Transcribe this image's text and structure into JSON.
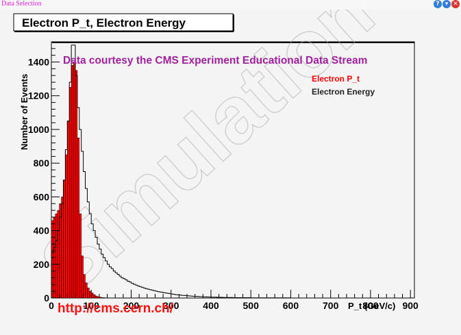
{
  "window": {
    "title": "Data Selection",
    "buttons": [
      {
        "name": "help-icon",
        "glyph": "?",
        "color": "#2f7fd8"
      },
      {
        "name": "minimize-icon",
        "glyph": "▾",
        "color": "#2f7fd8"
      },
      {
        "name": "close-icon",
        "glyph": "✕",
        "color": "#e03030"
      }
    ]
  },
  "chart_data": {
    "type": "bar",
    "title": "Electron P_t, Electron Energy",
    "subtitle": "Data courtesy the CMS Experiment Educational Data Stream",
    "xlabel": "P_t (GeV/c)",
    "ylabel": "Number of Events",
    "xlim": [
      0,
      910
    ],
    "ylim": [
      0,
      1520
    ],
    "xticks": [
      0,
      100,
      200,
      300,
      400,
      500,
      600,
      700,
      800,
      900
    ],
    "yticks": [
      0,
      200,
      400,
      600,
      800,
      1000,
      1200,
      1400
    ],
    "grid": false,
    "legend_position": "top-right",
    "bin_width": 5,
    "series": [
      {
        "name": "Electron P_t",
        "color": "#ff0000",
        "style": "filled-histogram",
        "bin_edges_start": 0,
        "values": [
          460,
          480,
          500,
          520,
          560,
          600,
          700,
          850,
          1050,
          1250,
          1380,
          1400,
          1350,
          950,
          500,
          250,
          140,
          90,
          60,
          40,
          30,
          20,
          12,
          8,
          5,
          3,
          2,
          1
        ]
      },
      {
        "name": "Electron Energy",
        "color": "#000000",
        "style": "step-histogram",
        "bin_edges_start": 0,
        "values": [
          270,
          300,
          340,
          400,
          480,
          560,
          700,
          880,
          1050,
          1280,
          1500,
          1500,
          1320,
          1130,
          1000,
          870,
          750,
          650,
          570,
          500,
          440,
          400,
          360,
          320,
          290,
          260,
          240,
          220,
          200,
          185,
          175,
          160,
          150,
          140,
          130,
          120,
          115,
          108,
          100,
          95,
          88,
          82,
          77,
          72,
          68,
          64,
          60,
          56,
          53,
          50,
          47,
          44,
          41,
          38,
          36,
          34,
          32,
          30,
          28,
          26,
          24,
          22,
          20,
          19,
          18,
          16,
          15,
          14,
          13,
          12,
          11,
          10,
          10,
          9,
          8,
          8,
          7,
          7,
          6,
          6,
          5,
          5,
          5,
          4,
          4,
          4,
          3,
          3,
          3,
          3,
          3,
          2,
          2,
          2,
          2,
          2,
          2,
          2,
          2,
          2,
          1,
          1,
          1,
          1,
          1,
          1,
          1,
          1,
          1,
          1,
          1,
          1,
          1,
          1,
          1,
          1,
          1,
          1,
          1,
          1
        ]
      }
    ],
    "annotations": {
      "source_url": "http://cms.cern.ch/",
      "watermark": "Simulation"
    }
  }
}
